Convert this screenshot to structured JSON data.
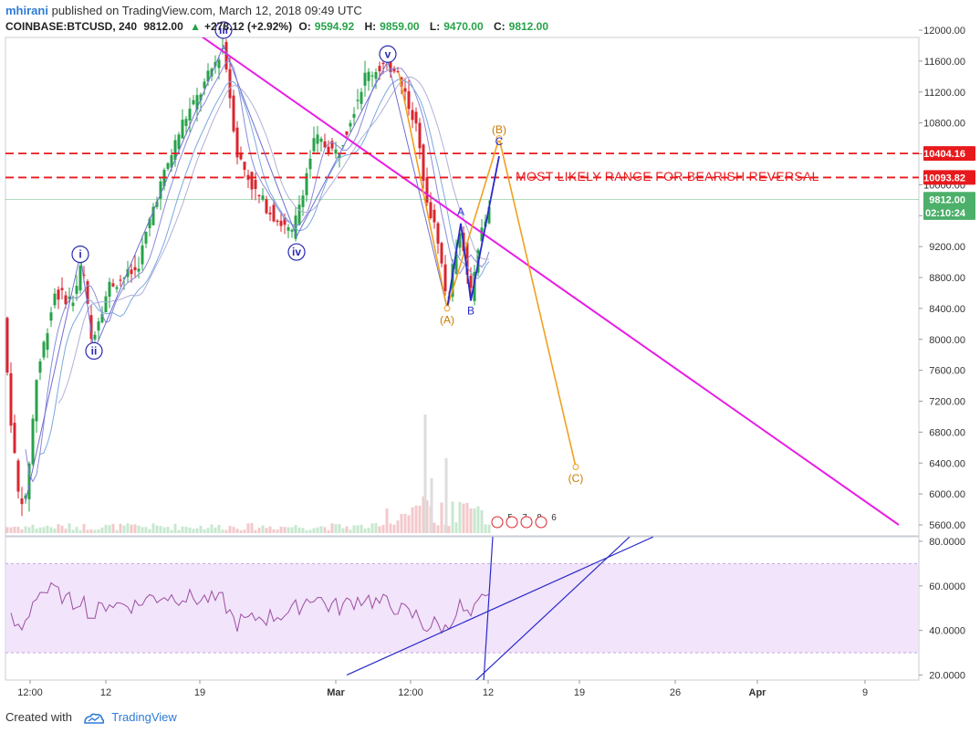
{
  "header": {
    "author": "mhirani",
    "published_text": "published on TradingView.com, March 12, 2018 09:49 UTC",
    "symbol": "COINBASE:BTCUSD, 240",
    "last": "9812.00",
    "change_arrow": "▲",
    "change": "+278.12 (+2.92%)",
    "o_label": "O:",
    "o_value": "9594.92",
    "h_label": "H:",
    "h_value": "9859.00",
    "l_label": "L:",
    "l_value": "9470.00",
    "c_label": "C:",
    "c_value": "9812.00"
  },
  "footer": {
    "created_with": "Created with",
    "brand": "TradingView"
  },
  "colors": {
    "up": "#27a24a",
    "down": "#d9262f",
    "trendline": "#e81ee6",
    "range": "#e8191c",
    "wave_orange": "#f0a020",
    "wave_blue": "#2a2ac8",
    "rsi": "#9c4fa0",
    "rsi_band": "#f1e4fb"
  },
  "chart_data": [
    {
      "type": "candlestick",
      "symbol": "COINBASE:BTCUSD",
      "interval": "240",
      "x_tick_labels": [
        "12:00",
        "12",
        "19",
        "Mar",
        "12:00",
        "12",
        "19",
        "26",
        "Apr",
        "9"
      ],
      "y_ticks": [
        "12000.00",
        "11600.00",
        "11200.00",
        "10800.00",
        "10400.00",
        "10000.00",
        "9600.00",
        "9200.00",
        "8800.00",
        "8400.00",
        "8000.00",
        "7600.00",
        "7200.00",
        "6800.00",
        "6400.00",
        "6000.00",
        "5600.00"
      ],
      "ylim": [
        5500,
        12050
      ],
      "price_tags": [
        {
          "label": "10404.16",
          "value": 10404.16,
          "color": "#e8191c"
        },
        {
          "label": "10093.82",
          "value": 10093.82,
          "color": "#e8191c"
        },
        {
          "label": "9812.00",
          "value": 9812,
          "color": "#4caf6a"
        },
        {
          "label": "02:10:24",
          "value": 9640,
          "color": "#4caf6a"
        }
      ],
      "range_lines": [
        10404.16,
        10093.82
      ],
      "annotation": "MOST LIKELY RANGE FOR BEARISH REVERSAL",
      "price_path": [
        [
          0,
          9000
        ],
        [
          10,
          7200
        ],
        [
          20,
          6000
        ],
        [
          28,
          5900
        ],
        [
          40,
          7500
        ],
        [
          60,
          8600
        ],
        [
          80,
          8500
        ],
        [
          90,
          9000
        ],
        [
          100,
          8000
        ],
        [
          120,
          8700
        ],
        [
          150,
          8900
        ],
        [
          170,
          9800
        ],
        [
          200,
          10800
        ],
        [
          220,
          11200
        ],
        [
          245,
          11800
        ],
        [
          260,
          10400
        ],
        [
          280,
          9900
        ],
        [
          300,
          9600
        ],
        [
          320,
          9350
        ],
        [
          345,
          10600
        ],
        [
          370,
          10400
        ],
        [
          400,
          11400
        ],
        [
          420,
          11550
        ],
        [
          435,
          11500
        ],
        [
          455,
          10800
        ],
        [
          470,
          9700
        ],
        [
          480,
          9300
        ],
        [
          490,
          8450
        ],
        [
          500,
          9200
        ],
        [
          505,
          9500
        ],
        [
          515,
          8500
        ],
        [
          525,
          9300
        ],
        [
          540,
          9812
        ]
      ],
      "wave_labels": [
        {
          "label": "i",
          "x": 88,
          "price": 9100,
          "style": "circle"
        },
        {
          "label": "ii",
          "x": 103,
          "price": 7850,
          "style": "circle"
        },
        {
          "label": "iii",
          "x": 245,
          "price": 12000,
          "style": "circle"
        },
        {
          "label": "iv",
          "x": 325,
          "price": 9130,
          "style": "circle"
        },
        {
          "label": "v",
          "x": 425,
          "price": 11690,
          "style": "circle"
        },
        {
          "label": "(A)",
          "x": 490,
          "price": 8250,
          "style": "orange"
        },
        {
          "label": "(B)",
          "x": 547,
          "price": 10710,
          "style": "orange"
        },
        {
          "label": "(C)",
          "x": 631,
          "price": 6200,
          "style": "orange"
        },
        {
          "label": "A",
          "x": 505,
          "price": 9650,
          "style": "blue"
        },
        {
          "label": "B",
          "x": 516,
          "price": 8370,
          "style": "blue"
        },
        {
          "label": "C",
          "x": 547,
          "price": 10560,
          "style": "blue"
        }
      ],
      "orange_wave": [
        [
          437,
          11450
        ],
        [
          490,
          8400
        ],
        [
          547,
          10600
        ],
        [
          631,
          6350
        ]
      ],
      "blue_wave": [
        [
          490,
          8400
        ],
        [
          505,
          9500
        ],
        [
          516,
          8500
        ],
        [
          547,
          10370
        ]
      ],
      "trendline": [
        [
          205,
          12050
        ],
        [
          985,
          5600
        ]
      ],
      "event_icons": [
        "5",
        "7",
        "8",
        "6"
      ]
    },
    {
      "type": "line",
      "name": "RSI",
      "y_ticks": [
        "80.0000",
        "60.0000",
        "40.0000",
        "20.0000"
      ],
      "ylim": [
        17,
        83
      ],
      "band": [
        30,
        70
      ],
      "lines": [
        [
          [
            380,
            20
          ],
          [
            716,
            82
          ]
        ],
        [
          [
            520,
            17
          ],
          [
            690,
            82
          ]
        ],
        [
          [
            530,
            17
          ],
          [
            540,
            82
          ]
        ]
      ]
    }
  ]
}
